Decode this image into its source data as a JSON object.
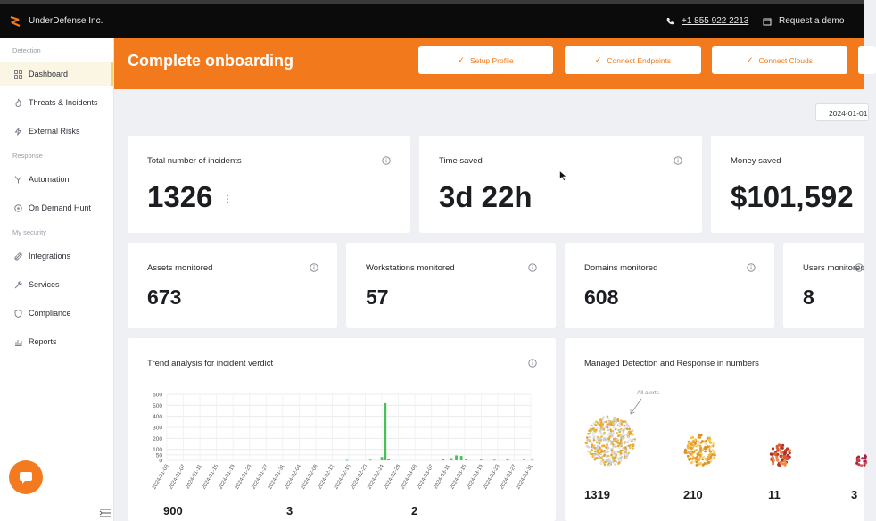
{
  "header": {
    "brand": "UnderDefense Inc.",
    "phone": "+1 855 922 2213",
    "request_demo": "Request a demo"
  },
  "sidebar": {
    "sections": [
      "Detection",
      "Response",
      "My security"
    ],
    "items": [
      {
        "label": "Dashboard",
        "icon": "grid-icon",
        "active": true
      },
      {
        "label": "Threats & Incidents",
        "icon": "flame-icon"
      },
      {
        "label": "External Risks",
        "icon": "bolt-icon"
      },
      {
        "label": "Automation",
        "icon": "branch-icon"
      },
      {
        "label": "On Demand Hunt",
        "icon": "target-icon"
      },
      {
        "label": "Integrations",
        "icon": "link-icon"
      },
      {
        "label": "Services",
        "icon": "wrench-icon"
      },
      {
        "label": "Compliance",
        "icon": "shield-icon"
      },
      {
        "label": "Reports",
        "icon": "bar-chart-icon"
      }
    ]
  },
  "banner": {
    "title": "Complete onboarding",
    "steps": [
      "Setup Profile",
      "Connect Endpoints",
      "Connect Clouds"
    ]
  },
  "date_filter": "2024-01-01",
  "stats_top": [
    {
      "label": "Total number of incidents",
      "value": "1326"
    },
    {
      "label": "Time saved",
      "value": "3d 22h"
    },
    {
      "label": "Money saved",
      "value": "$101,592"
    }
  ],
  "stats_mid": [
    {
      "label": "Assets monitored",
      "value": "673"
    },
    {
      "label": "Workstations monitored",
      "value": "57"
    },
    {
      "label": "Domains monitored",
      "value": "608"
    },
    {
      "label": "Users monitored",
      "value": "8"
    }
  ],
  "trend": {
    "title": "Trend analysis for incident verdict",
    "footer_values": [
      "900",
      "3",
      "2"
    ]
  },
  "mdr": {
    "title": "Managed Detection and Response in numbers",
    "annotation": "All alerts",
    "values": [
      "1319",
      "210",
      "11",
      "3"
    ]
  },
  "chart_data": {
    "type": "bar",
    "title": "Trend analysis for incident verdict",
    "ylim": [
      0,
      600
    ],
    "yticks": [
      0,
      50,
      100,
      200,
      300,
      400,
      500,
      600
    ],
    "categories": [
      "2024-01-03",
      "2024-01-07",
      "2024-01-11",
      "2024-01-15",
      "2024-01-19",
      "2024-01-23",
      "2024-01-27",
      "2024-01-31",
      "2024-02-04",
      "2024-02-08",
      "2024-02-12",
      "2024-02-16",
      "2024-02-20",
      "2024-02-24",
      "2024-02-28",
      "2024-03-03",
      "2024-03-07",
      "2024-03-11",
      "2024-03-15",
      "2024-03-19",
      "2024-03-23",
      "2024-03-27",
      "2024-03-31"
    ],
    "bars": [
      {
        "x": 10.9,
        "value": 3
      },
      {
        "x": 12.3,
        "value": 5
      },
      {
        "x": 13.0,
        "value": 30
      },
      {
        "x": 13.2,
        "value": 520
      },
      {
        "x": 13.4,
        "value": 15
      },
      {
        "x": 16.7,
        "value": 8
      },
      {
        "x": 17.2,
        "value": 20
      },
      {
        "x": 17.5,
        "value": 45
      },
      {
        "x": 17.8,
        "value": 40
      },
      {
        "x": 18.1,
        "value": 15
      },
      {
        "x": 19.0,
        "value": 6
      },
      {
        "x": 19.8,
        "value": 5
      },
      {
        "x": 20.6,
        "value": 8
      },
      {
        "x": 21.6,
        "value": 6
      },
      {
        "x": 22.1,
        "value": 5
      }
    ],
    "grid": true
  }
}
